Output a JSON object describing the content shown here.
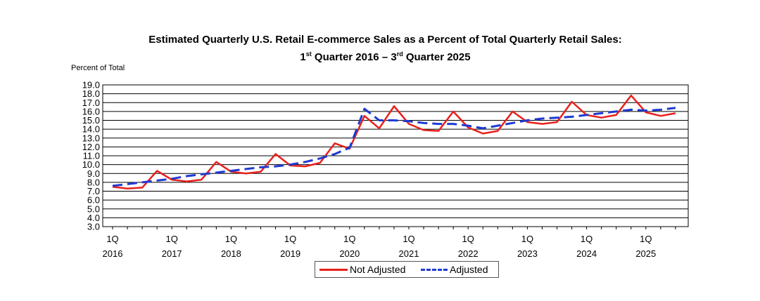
{
  "chart_data": {
    "type": "line",
    "title_line1": "Estimated Quarterly U.S. Retail E-commerce Sales as a Percent of Total Quarterly Retail Sales:",
    "title_line2": {
      "part1": "1",
      "sup1": "st",
      "part2": " Quarter 2016 – 3",
      "sup2": "rd",
      "part3": " Quarter 2025"
    },
    "ylabel": "Percent of Total",
    "ylim": [
      3.0,
      19.0
    ],
    "yticks": [
      "3.0",
      "4.0",
      "5.0",
      "6.0",
      "7.0",
      "8.0",
      "9.0",
      "10.0",
      "11.0",
      "12.0",
      "13.0",
      "14.0",
      "15.0",
      "16.0",
      "17.0",
      "18.0",
      "19.0"
    ],
    "x_quarters": [
      "2016Q1",
      "2016Q2",
      "2016Q3",
      "2016Q4",
      "2017Q1",
      "2017Q2",
      "2017Q3",
      "2017Q4",
      "2018Q1",
      "2018Q2",
      "2018Q3",
      "2018Q4",
      "2019Q1",
      "2019Q2",
      "2019Q3",
      "2019Q4",
      "2020Q1",
      "2020Q2",
      "2020Q3",
      "2020Q4",
      "2021Q1",
      "2021Q2",
      "2021Q3",
      "2021Q4",
      "2022Q1",
      "2022Q2",
      "2022Q3",
      "2022Q4",
      "2023Q1",
      "2023Q2",
      "2023Q3",
      "2023Q4",
      "2024Q1",
      "2024Q2",
      "2024Q3",
      "2024Q4",
      "2025Q1",
      "2025Q2",
      "2025Q3"
    ],
    "x_tick_labels": [
      {
        "quarter": "1Q",
        "year": "2016"
      },
      {
        "quarter": "1Q",
        "year": "2017"
      },
      {
        "quarter": "1Q",
        "year": "2018"
      },
      {
        "quarter": "1Q",
        "year": "2019"
      },
      {
        "quarter": "1Q",
        "year": "2020"
      },
      {
        "quarter": "1Q",
        "year": "2021"
      },
      {
        "quarter": "1Q",
        "year": "2022"
      },
      {
        "quarter": "1Q",
        "year": "2023"
      },
      {
        "quarter": "1Q",
        "year": "2024"
      },
      {
        "quarter": "1Q",
        "year": "2025"
      }
    ],
    "series": [
      {
        "name": "Not Adjusted",
        "color": "#e8201c",
        "style": "solid",
        "values": [
          7.5,
          7.3,
          7.4,
          9.3,
          8.3,
          8.1,
          8.3,
          10.3,
          9.2,
          9.0,
          9.2,
          11.2,
          9.9,
          9.8,
          10.2,
          12.4,
          11.8,
          15.5,
          14.1,
          16.6,
          14.6,
          13.9,
          13.8,
          16.0,
          14.2,
          13.5,
          13.8,
          16.0,
          14.8,
          14.6,
          14.8,
          17.1,
          15.6,
          15.3,
          15.6,
          17.8,
          15.9,
          15.5,
          15.8
        ]
      },
      {
        "name": "Adjusted",
        "color": "#1f3ad1",
        "style": "dashed",
        "values": [
          7.6,
          7.8,
          8.0,
          8.2,
          8.4,
          8.7,
          8.9,
          9.1,
          9.3,
          9.5,
          9.7,
          9.8,
          10.0,
          10.3,
          10.7,
          11.2,
          11.9,
          16.3,
          15.0,
          15.0,
          14.9,
          14.7,
          14.6,
          14.6,
          14.4,
          14.1,
          14.4,
          14.7,
          15.0,
          15.2,
          15.3,
          15.4,
          15.6,
          15.8,
          16.0,
          16.2,
          16.1,
          16.2,
          16.4
        ]
      }
    ]
  }
}
